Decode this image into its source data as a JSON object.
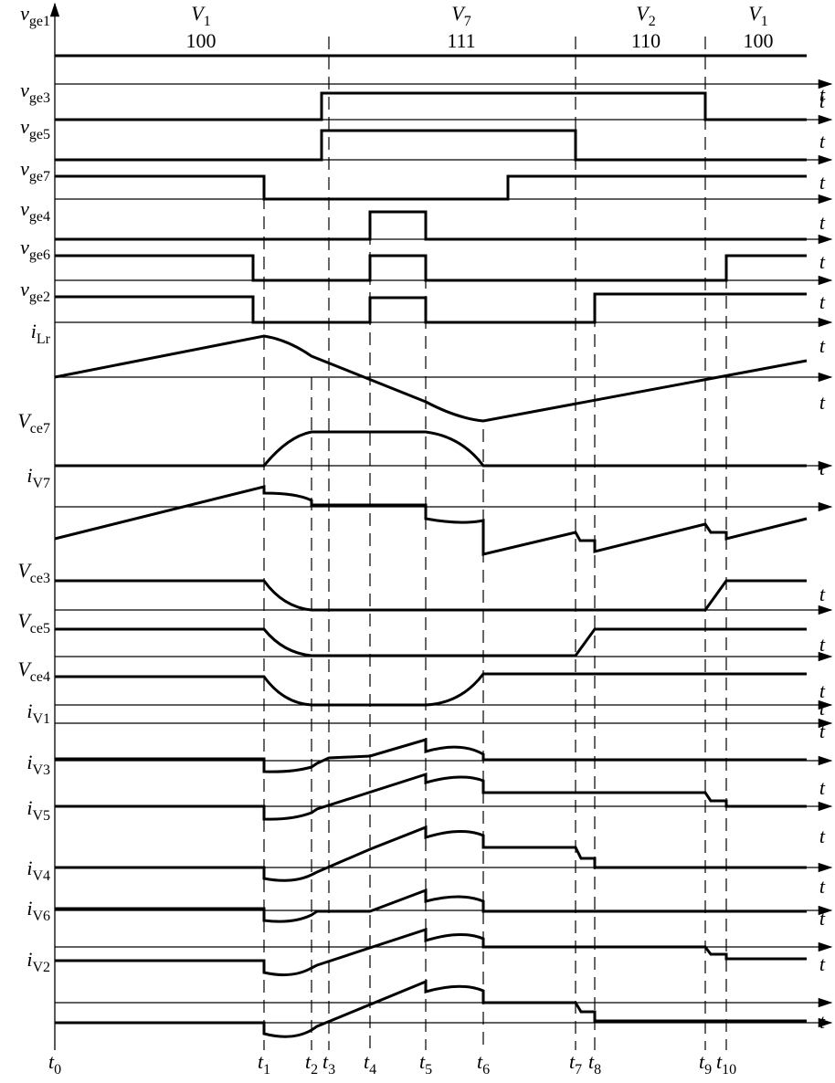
{
  "states": [
    {
      "name": "V",
      "sub": "1",
      "code": "100"
    },
    {
      "name": "V",
      "sub": "7",
      "code": "111"
    },
    {
      "name": "V",
      "sub": "2",
      "code": "110"
    },
    {
      "name": "V",
      "sub": "1",
      "code": "100"
    }
  ],
  "signals": [
    {
      "name": "v",
      "sub": "ge1"
    },
    {
      "name": "v",
      "sub": "ge3"
    },
    {
      "name": "v",
      "sub": "ge5"
    },
    {
      "name": "v",
      "sub": "ge7"
    },
    {
      "name": "v",
      "sub": "ge4"
    },
    {
      "name": "v",
      "sub": "ge6"
    },
    {
      "name": "v",
      "sub": "ge2"
    },
    {
      "name": "i",
      "sub": "Lr"
    },
    {
      "name": "V",
      "sub": "ce7"
    },
    {
      "name": "i",
      "sub": "V7"
    },
    {
      "name": "V",
      "sub": "ce3"
    },
    {
      "name": "V",
      "sub": "ce5"
    },
    {
      "name": "V",
      "sub": "ce4"
    },
    {
      "name": "i",
      "sub": "V1"
    },
    {
      "name": "i",
      "sub": "V3"
    },
    {
      "name": "i",
      "sub": "V5"
    },
    {
      "name": "i",
      "sub": "V4"
    },
    {
      "name": "i",
      "sub": "V6"
    },
    {
      "name": "i",
      "sub": "V2"
    }
  ],
  "times": [
    {
      "name": "t",
      "sub": "0"
    },
    {
      "name": "t",
      "sub": "1"
    },
    {
      "name": "t",
      "sub": "2"
    },
    {
      "name": "t",
      "sub": "3"
    },
    {
      "name": "t",
      "sub": "4"
    },
    {
      "name": "t",
      "sub": "5"
    },
    {
      "name": "t",
      "sub": "6"
    },
    {
      "name": "t",
      "sub": "7"
    },
    {
      "name": "t",
      "sub": "8"
    },
    {
      "name": "t",
      "sub": "9"
    },
    {
      "name": "t",
      "sub": "10"
    }
  ],
  "axis_label": "t"
}
